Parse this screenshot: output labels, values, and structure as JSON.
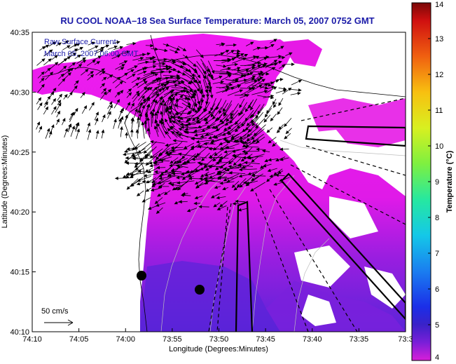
{
  "title": "RU COOL  NOAA–18  Sea Surface Temperature:  March 05, 2007 0752 GMT",
  "legend": {
    "line1": "Raw Surface Current:",
    "line2": "March 05, 2007 06:00 GMT"
  },
  "axes": {
    "xlabel": "Longitude (Degrees:Minutes)",
    "ylabel": "Latitude (Degrees:Minutes)",
    "x_ticks": [
      "74:10",
      "74:05",
      "74:00",
      "73:55",
      "73:50",
      "73:45",
      "73:40",
      "73:35",
      "73:3"
    ],
    "y_ticks": [
      "40:35",
      "40:30",
      "40:25",
      "40:20",
      "40:15",
      "40:10"
    ]
  },
  "scale_arrow": {
    "label": "50 cm/s"
  },
  "colorbar": {
    "title": "Temperature (°C)",
    "min": 4,
    "max": 14,
    "ticks": [
      "14",
      "13",
      "12",
      "11",
      "10",
      "9",
      "8",
      "7",
      "6",
      "5",
      "4"
    ]
  },
  "colors": {
    "title": "#1a1aa8",
    "sst_warm": "#e614e6",
    "sst_cool": "#8a1ee0",
    "sst_cold": "#4a2ad8",
    "land": "#ffffff"
  }
}
